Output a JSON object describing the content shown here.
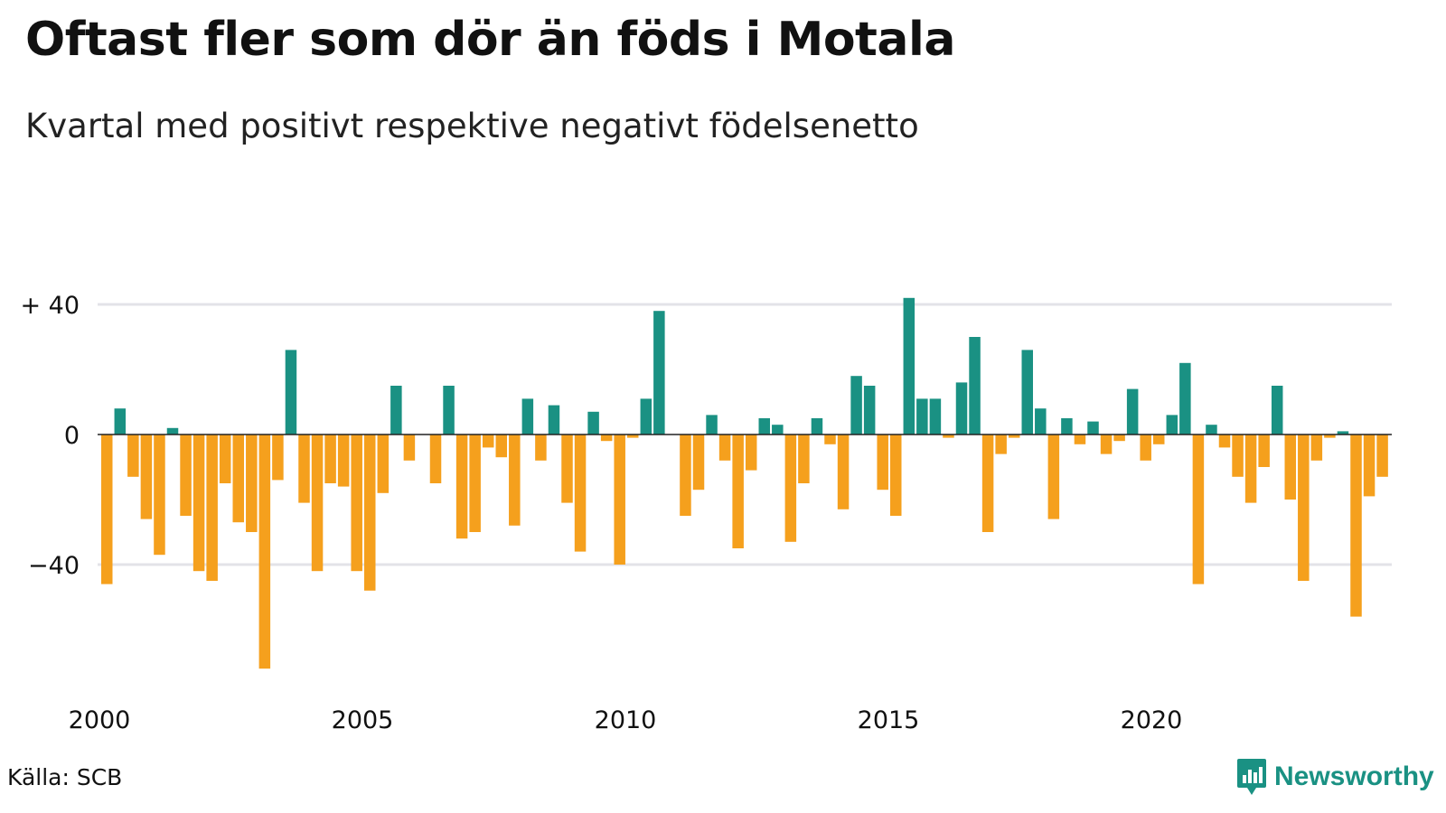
{
  "title": "Oftast fler som dör än föds i Motala",
  "subtitle": "Kvartal med positivt respektive negativt födelsenetto",
  "source": "Källa: SCB",
  "brand": {
    "name": "Newsworthy",
    "icon": "newsworthy-logo-icon",
    "color": "#1a9183"
  },
  "colors": {
    "positive": "#1a9183",
    "negative": "#f5a01d",
    "grid": "#e3e3e8",
    "axis": "#222222"
  },
  "chart_data": {
    "type": "bar",
    "title": "Oftast fler som dör än föds i Motala",
    "subtitle": "Kvartal med positivt respektive negativt födelsenetto",
    "xlabel": "",
    "ylabel": "",
    "ylim": [
      -76,
      44
    ],
    "y_ticks": [
      {
        "value": 40,
        "label": "+ 40"
      },
      {
        "value": 0,
        "label": "0"
      },
      {
        "value": -40,
        "label": "−40"
      }
    ],
    "x_ticks": [
      {
        "value": 2000,
        "label": "2000"
      },
      {
        "value": 2005,
        "label": "2005"
      },
      {
        "value": 2010,
        "label": "2010"
      },
      {
        "value": 2015,
        "label": "2015"
      },
      {
        "value": 2020,
        "label": "2020"
      }
    ],
    "start_year": 2000,
    "periods_per_year": 4,
    "grid": true,
    "values": [
      -46,
      8,
      -13,
      -26,
      -37,
      2,
      -25,
      -42,
      -45,
      -15,
      -27,
      -30,
      -72,
      -14,
      26,
      -21,
      -42,
      -15,
      -16,
      -42,
      -48,
      -18,
      15,
      -8,
      0,
      -15,
      15,
      -32,
      -30,
      -4,
      -7,
      -28,
      11,
      -8,
      9,
      -21,
      -36,
      7,
      -2,
      -40,
      -1,
      11,
      38,
      0,
      -25,
      -17,
      6,
      -8,
      -35,
      -11,
      5,
      3,
      -33,
      -15,
      5,
      -3,
      -23,
      18,
      15,
      -17,
      -25,
      42,
      11,
      11,
      -1,
      16,
      30,
      -30,
      -6,
      -1,
      26,
      8,
      -26,
      5,
      -3,
      4,
      -6,
      -2,
      14,
      -8,
      -3,
      6,
      22,
      -46,
      3,
      -4,
      -13,
      -21,
      -10,
      15,
      -20,
      -45,
      -8,
      -1,
      1,
      -56,
      -19,
      -13
    ]
  }
}
